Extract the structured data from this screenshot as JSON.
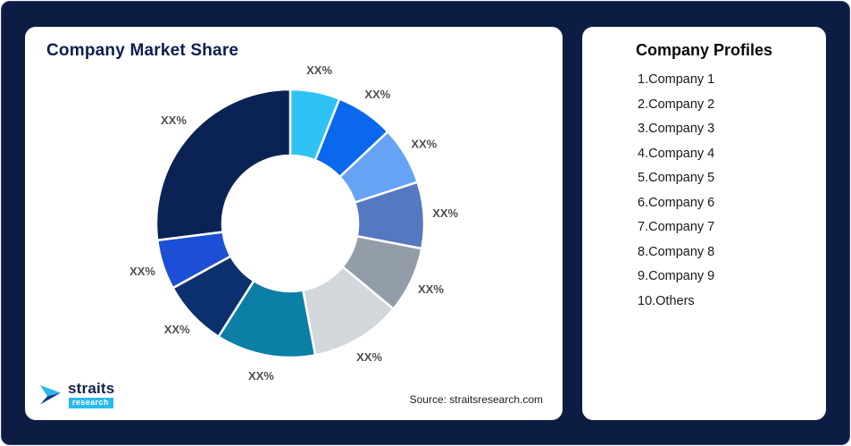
{
  "window": {
    "background": "#0D1C42"
  },
  "market_share_card": {
    "title": "Company Market Share",
    "source": "Source: straitsresearch.com"
  },
  "logo": {
    "brand": "straits",
    "brand_sub": "research",
    "icon": "straits-play-arrow-icon",
    "accent_color": "#29B9EA",
    "dark_color": "#13214F"
  },
  "profiles_card": {
    "title": "Company Profiles",
    "items": [
      "1.Company 1",
      "2.Company 2",
      "3.Company 3",
      "4.Company 4",
      "5.Company 5",
      "6.Company 6",
      "7.Company 7",
      "8.Company 8",
      "9.Company 9",
      "10.Others"
    ]
  },
  "chart_data": {
    "type": "pie",
    "subtype": "donut",
    "title": "Company Market Share",
    "labels": [
      "Company 1",
      "Company 2",
      "Company 3",
      "Company 4",
      "Company 5",
      "Company 6",
      "Company 7",
      "Company 8",
      "Company 9",
      "Others"
    ],
    "values": [
      6,
      7,
      7,
      8,
      8,
      11,
      12,
      8,
      6,
      27
    ],
    "values_note": "percentages not shown in image; estimated from arc sizes",
    "displayed_value_text": "XX%",
    "colors": [
      "#2FC2F5",
      "#0A68EE",
      "#66A3F5",
      "#5479C1",
      "#939DAA",
      "#D2D7DC",
      "#0B7FA6",
      "#0D306E",
      "#1D4FD6",
      "#0A2254"
    ],
    "start_angle_deg": 0,
    "direction": "clockwise",
    "inner_radius_ratio": 0.5,
    "slice_gap_color": "#FFFFFF",
    "legend": "none",
    "source_caption": "Source: straitsresearch.com"
  }
}
